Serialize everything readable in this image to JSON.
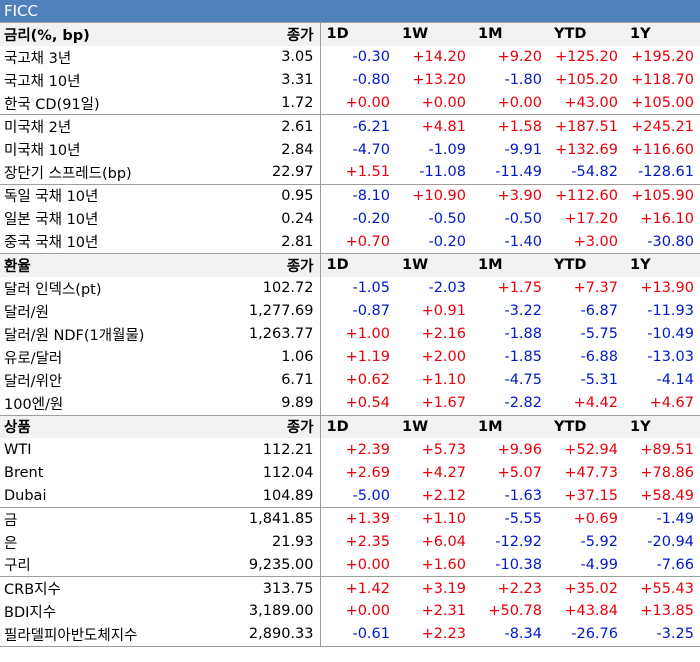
{
  "title": "FICC",
  "colors": {
    "title_bg": "#4f81bd",
    "positive": "#e8000b",
    "negative": "#0019c8"
  },
  "sections": [
    {
      "header": {
        "label": "금리(%, bp)",
        "close": "종가",
        "cols": [
          "1D",
          "1W",
          "1M",
          "YTD",
          "1Y"
        ]
      },
      "groups": [
        [
          {
            "name": "국고채 3년",
            "close": "3.05",
            "vals": [
              "-0.30",
              "+14.20",
              "+9.20",
              "+125.20",
              "+195.20"
            ]
          },
          {
            "name": "국고채 10년",
            "close": "3.31",
            "vals": [
              "-0.80",
              "+13.20",
              "-1.80",
              "+105.20",
              "+118.70"
            ]
          },
          {
            "name": "한국 CD(91일)",
            "close": "1.72",
            "vals": [
              "+0.00",
              "+0.00",
              "+0.00",
              "+43.00",
              "+105.00"
            ]
          }
        ],
        [
          {
            "name": "미국채 2년",
            "close": "2.61",
            "vals": [
              "-6.21",
              "+4.81",
              "+1.58",
              "+187.51",
              "+245.21"
            ]
          },
          {
            "name": "미국채 10년",
            "close": "2.84",
            "vals": [
              "-4.70",
              "-1.09",
              "-9.91",
              "+132.69",
              "+116.60"
            ]
          },
          {
            "name": "장단기 스프레드(bp)",
            "close": "22.97",
            "vals": [
              "+1.51",
              "-11.08",
              "-11.49",
              "-54.82",
              "-128.61"
            ]
          }
        ],
        [
          {
            "name": "독일 국채 10년",
            "close": "0.95",
            "vals": [
              "-8.10",
              "+10.90",
              "+3.90",
              "+112.60",
              "+105.90"
            ]
          },
          {
            "name": "일본 국채 10년",
            "close": "0.24",
            "vals": [
              "-0.20",
              "-0.50",
              "-0.50",
              "+17.20",
              "+16.10"
            ]
          },
          {
            "name": "중국 국채 10년",
            "close": "2.81",
            "vals": [
              "+0.70",
              "-0.20",
              "-1.40",
              "+3.00",
              "-30.80"
            ]
          }
        ]
      ]
    },
    {
      "header": {
        "label": "환율",
        "close": "종가",
        "cols": [
          "1D",
          "1W",
          "1M",
          "YTD",
          "1Y"
        ]
      },
      "groups": [
        [
          {
            "name": "달러 인덱스(pt)",
            "close": "102.72",
            "vals": [
              "-1.05",
              "-2.03",
              "+1.75",
              "+7.37",
              "+13.90"
            ]
          },
          {
            "name": "달러/원",
            "close": "1,277.69",
            "vals": [
              "-0.87",
              "+0.91",
              "-3.22",
              "-6.87",
              "-11.93"
            ]
          },
          {
            "name": "달러/원 NDF(1개월물)",
            "close": "1,263.77",
            "vals": [
              "+1.00",
              "+2.16",
              "-1.88",
              "-5.75",
              "-10.49"
            ]
          },
          {
            "name": "유로/달러",
            "close": "1.06",
            "vals": [
              "+1.19",
              "+2.00",
              "-1.85",
              "-6.88",
              "-13.03"
            ]
          },
          {
            "name": "달러/위안",
            "close": "6.71",
            "vals": [
              "+0.62",
              "+1.10",
              "-4.75",
              "-5.31",
              "-4.14"
            ]
          },
          {
            "name": "100엔/원",
            "close": "9.89",
            "vals": [
              "+0.54",
              "+1.67",
              "-2.82",
              "+4.42",
              "+4.67"
            ]
          }
        ]
      ]
    },
    {
      "header": {
        "label": "상품",
        "close": "종가",
        "cols": [
          "1D",
          "1W",
          "1M",
          "YTD",
          "1Y"
        ]
      },
      "groups": [
        [
          {
            "name": "WTI",
            "close": "112.21",
            "vals": [
              "+2.39",
              "+5.73",
              "+9.96",
              "+52.94",
              "+89.51"
            ]
          },
          {
            "name": "Brent",
            "close": "112.04",
            "vals": [
              "+2.69",
              "+4.27",
              "+5.07",
              "+47.73",
              "+78.86"
            ]
          },
          {
            "name": "Dubai",
            "close": "104.89",
            "vals": [
              "-5.00",
              "+2.12",
              "-1.63",
              "+37.15",
              "+58.49"
            ]
          }
        ],
        [
          {
            "name": "금",
            "close": "1,841.85",
            "vals": [
              "+1.39",
              "+1.10",
              "-5.55",
              "+0.69",
              "-1.49"
            ]
          },
          {
            "name": "은",
            "close": "21.93",
            "vals": [
              "+2.35",
              "+6.04",
              "-12.92",
              "-5.92",
              "-20.94"
            ]
          },
          {
            "name": "구리",
            "close": "9,235.00",
            "vals": [
              "+0.00",
              "+1.60",
              "-10.38",
              "-4.99",
              "-7.66"
            ]
          }
        ],
        [
          {
            "name": "CRB지수",
            "close": "313.75",
            "vals": [
              "+1.42",
              "+3.19",
              "+2.23",
              "+35.02",
              "+55.43"
            ]
          },
          {
            "name": "BDI지수",
            "close": "3,189.00",
            "vals": [
              "+0.00",
              "+2.31",
              "+50.78",
              "+43.84",
              "+13.85"
            ]
          },
          {
            "name": "필라델피아반도체지수",
            "close": "2,890.33",
            "vals": [
              "-0.61",
              "+2.23",
              "-8.34",
              "-26.76",
              "-3.25"
            ]
          }
        ]
      ]
    }
  ]
}
